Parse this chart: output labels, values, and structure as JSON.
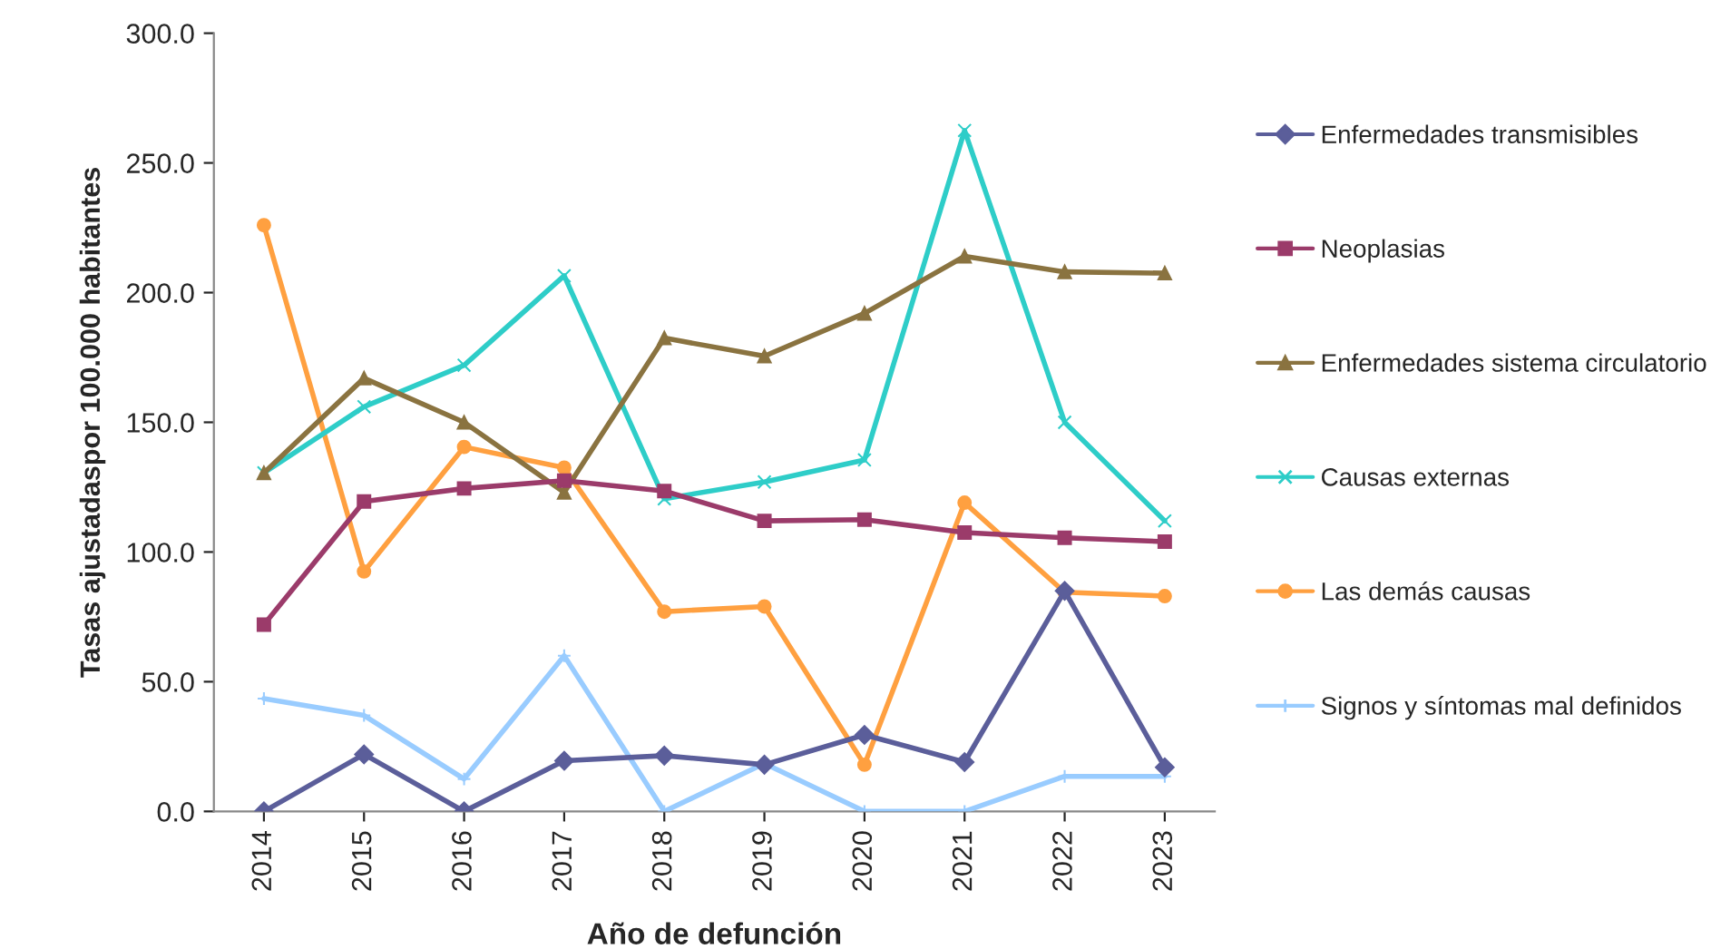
{
  "chart_data": {
    "type": "line",
    "xlabel": "Año de defunción",
    "ylabel": "Tasas ajustadaspor 100.000 habitantes",
    "categories": [
      "2014",
      "2015",
      "2016",
      "2017",
      "2018",
      "2019",
      "2020",
      "2021",
      "2022",
      "2023"
    ],
    "series": [
      {
        "name": "Enfermedades transmisibles",
        "color": "#5b5e9a",
        "marker": "diamond",
        "values": [
          0,
          22,
          0,
          19.5,
          21.5,
          18,
          29.5,
          19,
          85,
          17
        ]
      },
      {
        "name": "Neoplasias",
        "color": "#9b3b6a",
        "marker": "square",
        "values": [
          72,
          119.5,
          124.5,
          127.5,
          123.5,
          112,
          112.5,
          107.5,
          105.5,
          104
        ]
      },
      {
        "name": "Enfermedades sistema circulatorio",
        "color": "#8a7340",
        "marker": "triangle",
        "values": [
          130.5,
          167,
          150,
          123,
          182.5,
          175.5,
          192,
          214,
          208,
          207.5
        ]
      },
      {
        "name": "Causas externas",
        "color": "#2ecdc8",
        "marker": "cross",
        "values": [
          130.5,
          156,
          172,
          206.5,
          120.5,
          127,
          135.5,
          262.5,
          150,
          112
        ]
      },
      {
        "name": "Las demás causas",
        "color": "#ffa040",
        "marker": "circle",
        "values": [
          226,
          92.5,
          140.5,
          132.5,
          77,
          79,
          18,
          119,
          84.5,
          83
        ]
      },
      {
        "name": "Signos y síntomas mal definidos",
        "color": "#99ccff",
        "marker": "plus",
        "values": [
          43.5,
          37,
          12.5,
          60,
          0,
          18.5,
          0,
          0,
          13.5,
          13.5
        ]
      }
    ],
    "ylim": [
      0,
      300
    ],
    "yticks": [
      {
        "value": 0,
        "label": "0.0"
      },
      {
        "value": 50,
        "label": "50.0"
      },
      {
        "value": 100,
        "label": "100.0"
      },
      {
        "value": 150,
        "label": "150.0"
      },
      {
        "value": 200,
        "label": "200.0"
      },
      {
        "value": 250,
        "label": "250.0"
      },
      {
        "value": 300,
        "label": "300.0"
      }
    ],
    "grid": false,
    "legend": "right",
    "line_style": "solid"
  }
}
